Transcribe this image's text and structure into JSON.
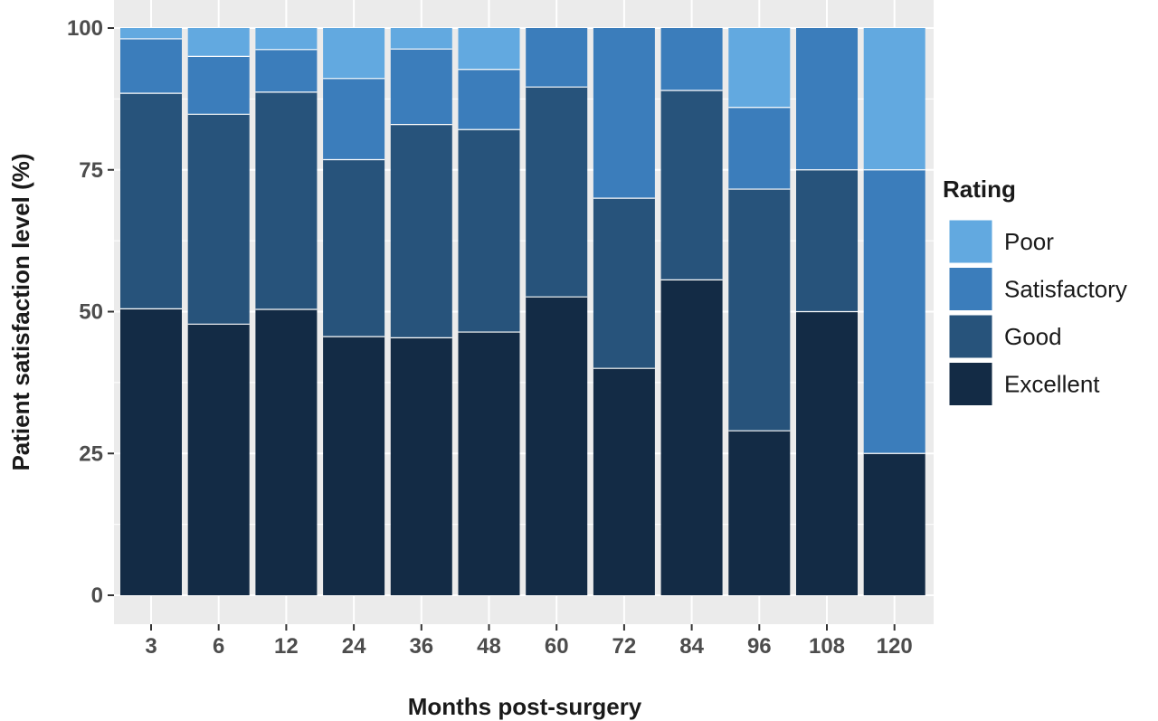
{
  "chart_data": {
    "type": "bar",
    "stacked": true,
    "title": "",
    "xlabel": "Months post-surgery",
    "ylabel": "Patient satisfaction level (%)",
    "ylim": [
      0,
      100
    ],
    "yticks": [
      0,
      25,
      50,
      75,
      100
    ],
    "grid": true,
    "categories": [
      "3",
      "6",
      "12",
      "24",
      "36",
      "48",
      "60",
      "72",
      "84",
      "96",
      "108",
      "120"
    ],
    "legend": {
      "title": "Rating",
      "position": "right"
    },
    "series": [
      {
        "name": "Excellent",
        "color": "#132b45",
        "values": [
          50.5,
          47.8,
          50.4,
          45.6,
          45.4,
          46.4,
          52.6,
          40.0,
          55.6,
          29.0,
          50.0,
          25.0
        ]
      },
      {
        "name": "Good",
        "color": "#27537b",
        "values": [
          38.0,
          37.0,
          38.3,
          31.2,
          37.6,
          35.7,
          37.0,
          30.0,
          33.4,
          42.6,
          25.0,
          0.0
        ]
      },
      {
        "name": "Satisfactory",
        "color": "#3b7dbb",
        "values": [
          9.6,
          10.2,
          7.5,
          14.3,
          13.3,
          10.6,
          10.4,
          30.0,
          11.0,
          14.4,
          25.0,
          50.0
        ]
      },
      {
        "name": "Poor",
        "color": "#62a9e0",
        "values": [
          1.9,
          5.0,
          3.8,
          8.9,
          3.7,
          7.3,
          0.0,
          0.0,
          0.0,
          14.0,
          0.0,
          25.0
        ]
      }
    ]
  },
  "style": {
    "panel_background": "#ebebeb",
    "grid_color": "#ffffff",
    "bar_gap_color": "#ffffff"
  }
}
